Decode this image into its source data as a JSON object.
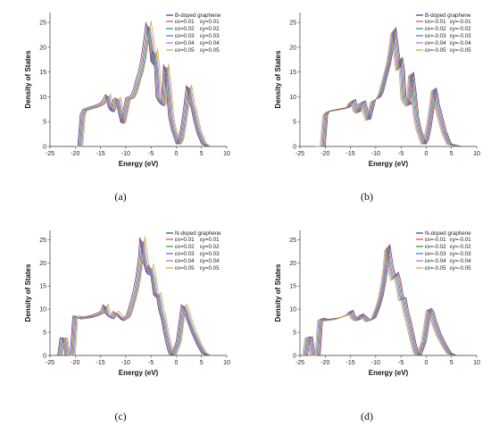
{
  "colors": [
    "#3b3b8f",
    "#e0405a",
    "#2f8f3a",
    "#3a6fd8",
    "#b06fd0",
    "#c9a52a"
  ],
  "chart_data": [
    {
      "type": "line",
      "caption": "(a)",
      "xlabel": "Energy (eV)",
      "ylabel": "Density of States",
      "xlim": [
        -25,
        10
      ],
      "ylim": [
        0,
        27
      ],
      "xticks": [
        -25,
        -20,
        -15,
        -10,
        -5,
        0,
        5,
        10
      ],
      "yticks": [
        0,
        5,
        10,
        15,
        20,
        25
      ],
      "legend_position": "top-right",
      "legend_title": "B-doped graphene",
      "legend_rows": [
        [
          "εx=0.01",
          "εy=0.01"
        ],
        [
          "εx=0.02",
          "εy=0.02"
        ],
        [
          "εx=0.03",
          "εy=0.03"
        ],
        [
          "εx=0.04",
          "εy=0.04"
        ],
        [
          "εx=0.05",
          "εy=0.05"
        ]
      ],
      "series_shift": [
        0,
        0.2,
        0.4,
        0.6,
        0.8,
        1.0
      ],
      "series_scale": [
        1.0,
        0.98,
        0.97,
        0.96,
        0.97,
        1.01
      ],
      "series": [
        {
          "x": [
            -21,
            -19.5,
            -19,
            -18.5,
            -17,
            -16,
            -15,
            -14.5,
            -14,
            -13.5,
            -13,
            -12.5,
            -12,
            -11.5,
            -11,
            -10,
            -9,
            -8.5,
            -8,
            -7.5,
            -7,
            -6.5,
            -6,
            -5.5,
            -5,
            -4.7,
            -4.3,
            -4,
            -3.5,
            -3,
            -2.5,
            -2,
            -1.5,
            -1,
            0,
            0.5,
            1,
            1.5,
            2,
            2.3,
            2.6,
            3,
            3.5,
            4,
            5,
            6
          ],
          "y": [
            0,
            0,
            6.5,
            7.5,
            8,
            8.3,
            8.8,
            9.5,
            10.5,
            8,
            7.2,
            9.5,
            9.8,
            7,
            4.8,
            9.8,
            10.2,
            11.5,
            13.5,
            15,
            17.5,
            21,
            25,
            22,
            17,
            19.5,
            16,
            10,
            9,
            8.5,
            16.5,
            12,
            6,
            3.5,
            0.5,
            1.5,
            4.5,
            8,
            12.3,
            11,
            9,
            7.5,
            5,
            3,
            0.5,
            0
          ]
        }
      ]
    },
    {
      "type": "line",
      "caption": "(b)",
      "xlabel": "Energy (eV)",
      "ylabel": "Density of States",
      "xlim": [
        -25,
        10
      ],
      "ylim": [
        0,
        27
      ],
      "xticks": [
        -25,
        -20,
        -15,
        -10,
        -5,
        0,
        5,
        10
      ],
      "yticks": [
        0,
        5,
        10,
        15,
        20,
        25
      ],
      "legend_position": "top-right",
      "legend_title": "B-doped graphene",
      "legend_rows": [
        [
          "εx=-0.01",
          "εy=-0.01"
        ],
        [
          "εx=-0.02",
          "εy=-0.02"
        ],
        [
          "εx=-0.03",
          "εy=-0.03"
        ],
        [
          "εx=-0.04",
          "εy=-0.04"
        ],
        [
          "εx=-0.05",
          "εy=-0.05"
        ]
      ],
      "series_shift": [
        0,
        -0.2,
        -0.4,
        -0.6,
        -0.8,
        -1.0
      ],
      "series_scale": [
        1.0,
        0.99,
        0.98,
        0.97,
        0.96,
        0.95
      ],
      "series": [
        {
          "x": [
            -21,
            -20,
            -19.5,
            -19,
            -17,
            -16,
            -15,
            -14.5,
            -14,
            -13.5,
            -13,
            -12.5,
            -12,
            -11.5,
            -11,
            -10,
            -9,
            -8.5,
            -8,
            -7.5,
            -7,
            -6.5,
            -6,
            -5.5,
            -5,
            -4.7,
            -4.3,
            -4,
            -3.5,
            -3,
            -2.5,
            -2,
            -1.5,
            -1,
            0,
            0.5,
            1,
            1.5,
            2,
            2.3,
            2.6,
            3,
            3.5,
            4,
            5,
            7
          ],
          "y": [
            0,
            0,
            6.5,
            7.2,
            7.6,
            7.8,
            8,
            9,
            9.5,
            7.5,
            7,
            9,
            9.2,
            7,
            5.5,
            9.5,
            10,
            11,
            13,
            15,
            17,
            20,
            24,
            20,
            16,
            18,
            15.5,
            10,
            9,
            8.5,
            15,
            11,
            6,
            3.5,
            0.5,
            1.5,
            4,
            7.5,
            11.8,
            10.5,
            8.5,
            7,
            5,
            3,
            0.5,
            0
          ]
        }
      ]
    },
    {
      "type": "line",
      "caption": "(c)",
      "xlabel": "Energy (eV)",
      "ylabel": "Density of States",
      "xlim": [
        -25,
        10
      ],
      "ylim": [
        0,
        27
      ],
      "xticks": [
        -25,
        -20,
        -15,
        -10,
        -5,
        0,
        5,
        10
      ],
      "yticks": [
        0,
        5,
        10,
        15,
        20,
        25
      ],
      "legend_position": "top-right",
      "legend_title": "N-doped graphene",
      "legend_rows": [
        [
          "εx=0.01",
          "εy=0.01"
        ],
        [
          "εx=0.02",
          "εy=0.02"
        ],
        [
          "εx=0.03",
          "εy=0.03"
        ],
        [
          "εx=0.04",
          "εy=0.04"
        ],
        [
          "εx=0.05",
          "εy=0.05"
        ]
      ],
      "series_shift": [
        0,
        0.2,
        0.4,
        0.6,
        0.8,
        1.0
      ],
      "series_scale": [
        1.0,
        0.98,
        0.97,
        0.96,
        0.97,
        1.01
      ],
      "series": [
        {
          "x": [
            -23.5,
            -23,
            -22.5,
            -22,
            -21.5,
            -21,
            -20.5,
            -20,
            -19.5,
            -18,
            -17,
            -16,
            -15,
            -14.5,
            -14,
            -13.5,
            -13,
            -12.5,
            -12,
            -11,
            -10,
            -9.5,
            -9,
            -8.5,
            -8,
            -7.5,
            -7.2,
            -7,
            -6.5,
            -6,
            -5.5,
            -5,
            -4.5,
            -4,
            -3.5,
            -3,
            -2.5,
            -2,
            -1.5,
            -1,
            0,
            0.5,
            1,
            1.5,
            2,
            3,
            4,
            5,
            6
          ],
          "y": [
            0,
            3.8,
            3.8,
            0,
            0,
            0,
            8.5,
            8.5,
            8.2,
            8.4,
            8.6,
            9,
            9.5,
            11,
            9,
            8.5,
            8.2,
            9.5,
            9,
            7.8,
            8.5,
            10,
            12,
            14,
            17,
            21,
            25.5,
            24,
            20,
            18,
            19.5,
            17,
            13,
            13.5,
            10,
            8,
            5,
            2.5,
            0.5,
            0,
            3,
            7,
            11,
            10,
            8,
            5,
            2.5,
            0.5,
            0
          ]
        }
      ]
    },
    {
      "type": "line",
      "caption": "(d)",
      "xlabel": "Energy (eV)",
      "ylabel": "Density of States",
      "xlim": [
        -25,
        10
      ],
      "ylim": [
        0,
        27
      ],
      "xticks": [
        -25,
        -20,
        -15,
        -10,
        -5,
        0,
        5,
        10
      ],
      "yticks": [
        0,
        5,
        10,
        15,
        20,
        25
      ],
      "legend_position": "top-right",
      "legend_title": "N-doped graphene",
      "legend_rows": [
        [
          "εx=-0.01",
          "εy=-0.01"
        ],
        [
          "εx=-0.02",
          "εy=-0.02"
        ],
        [
          "εx=-0.03",
          "εy=-0.03"
        ],
        [
          "εx=-0.04",
          "εy=-0.04"
        ],
        [
          "εx=-0.05",
          "εy=-0.05"
        ]
      ],
      "series_shift": [
        0,
        -0.2,
        -0.4,
        -0.6,
        -0.8,
        -1.0
      ],
      "series_scale": [
        1.0,
        0.99,
        0.98,
        0.97,
        0.96,
        0.95
      ],
      "series": [
        {
          "x": [
            -23.5,
            -23,
            -22.5,
            -22,
            -21.5,
            -21,
            -20.5,
            -20,
            -19.5,
            -18,
            -17,
            -16,
            -15,
            -14.5,
            -14,
            -13.5,
            -13,
            -12.5,
            -12,
            -11,
            -10,
            -9.5,
            -9,
            -8.5,
            -8,
            -7.5,
            -7.2,
            -7,
            -6.5,
            -6,
            -5.5,
            -5,
            -4.5,
            -4,
            -3.5,
            -3,
            -2.5,
            -2,
            -1.5,
            -1,
            0,
            0.5,
            1,
            1.5,
            2,
            3,
            4,
            5,
            6
          ],
          "y": [
            0,
            4,
            4,
            0,
            0,
            0,
            8,
            8,
            7.8,
            8,
            8.2,
            8.6,
            9,
            9.8,
            8.5,
            8,
            7.8,
            9,
            8.6,
            7.6,
            8.2,
            9.5,
            11,
            13,
            16,
            20,
            24,
            22.5,
            19,
            17,
            18,
            16,
            12.5,
            12.5,
            9.5,
            7.5,
            5,
            2.5,
            0.5,
            0,
            3,
            6.5,
            10.2,
            9.5,
            7.5,
            4.5,
            2.3,
            0.5,
            0
          ]
        }
      ]
    }
  ]
}
